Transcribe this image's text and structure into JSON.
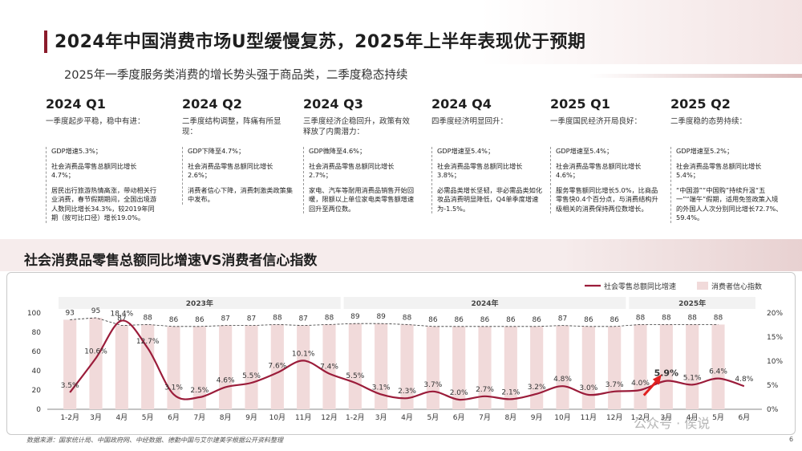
{
  "title": "2024年中国消费市场U型缓慢复苏，2025年上半年表现优于预期",
  "subtitle": "2025年一季度服务类消费的增长势头强于商品类，二季度稳态持续",
  "quarters": [
    {
      "heading": "2024 Q1",
      "summary": "一季度起步平稳，稳中有进：",
      "points": [
        "GDP增速5.3%；",
        "社会消费品零售总额同比增长4.7%；",
        "居民出行旅游热情高涨，带动相关行业消费，春节假期期间，全国出境游人数同比增长34.3%，较2019年同期（按可比口径）增长19.0%。"
      ]
    },
    {
      "heading": "2024 Q2",
      "summary": "二季度结构调整，阵痛有所显现：",
      "points": [
        "GDP下降至4.7%；",
        "社会消费品零售总额同比增长2.6%；",
        "消费者信心下降，消费刺激类政策集中发布。"
      ]
    },
    {
      "heading": "2024 Q3",
      "summary": "三季度经济企稳回升，政策有效释放了内需潜力：",
      "points": [
        "GDP微降至4.6%；",
        "社会消费品零售总额同比增长2.7%；",
        "家电、汽车等耐用消费品销售开始回暖，限额以上单位家电类零售额增速回升至两位数。"
      ]
    },
    {
      "heading": "2024 Q4",
      "summary": "四季度经济明显回升：",
      "points": [
        "GDP增速至5.4%；",
        "社会消费品零售总额同比增长3.8%；",
        "必需品类增长坚韧，非必需品类如化妆品消费明显降低，Q4单季度增速为-1.5%。"
      ]
    },
    {
      "heading": "2025 Q1",
      "summary": "一季度国民经济开局良好：",
      "points": [
        "GDP增速至5.4%；",
        "社会消费品零售总额同比增长4.6%；",
        "服务零售额同比增长5.0%，比商品零售快0.4个百分点，与消费结构升级相关的消费保持两位数增长。"
      ]
    },
    {
      "heading": "2025 Q2",
      "summary": "二季度稳的态势持续：",
      "points": [
        "GDP增速至5.2%；",
        "社会消费品零售总额同比增长5.4%；",
        "“中国游”“中国购”持续升温“五一”“端午”假期，适用免签政策入境的外国人人次分别同比增长72.7%、59.4%。"
      ]
    }
  ],
  "chart_title": "社会消费品零售总额同比增速VS消费者信心指数",
  "chart_data": {
    "type": "bar+line",
    "categories": [
      "1-2月",
      "3月",
      "4月",
      "5月",
      "6月",
      "7月",
      "8月",
      "9月",
      "10月",
      "11月",
      "12月",
      "1-2月",
      "3月",
      "4月",
      "5月",
      "6月",
      "7月",
      "8月",
      "9月",
      "10月",
      "11月",
      "12月",
      "1-2月",
      "3月",
      "4月",
      "5月",
      "6月"
    ],
    "year_labels": [
      "2023年",
      "2024年",
      "2025年"
    ],
    "series": [
      {
        "name": "社会零售总额同比增速",
        "axis": "right",
        "type": "line",
        "color": "#9b1c3a",
        "values": [
          3.5,
          10.6,
          18.4,
          12.7,
          3.1,
          2.5,
          4.6,
          5.5,
          7.6,
          10.1,
          7.4,
          5.5,
          3.1,
          2.3,
          3.7,
          2.0,
          2.7,
          2.1,
          3.2,
          4.8,
          3.0,
          3.7,
          4.0,
          5.9,
          5.1,
          6.4,
          4.8
        ]
      },
      {
        "name": "消费者信心指数",
        "axis": "left",
        "type": "bar",
        "color": "#f1dada",
        "values": [
          93,
          95,
          87,
          88,
          86,
          86,
          87,
          87,
          88,
          87,
          88,
          89,
          89,
          88,
          86,
          86,
          86,
          86,
          86,
          87,
          86,
          86,
          88,
          88,
          88,
          88,
          null
        ]
      }
    ],
    "left_axis": {
      "ylim": [
        0,
        100
      ],
      "ticks": [
        "0",
        "20",
        "40",
        "60",
        "80",
        "100"
      ]
    },
    "right_axis": {
      "ylim": [
        0,
        20
      ],
      "ticks": [
        "0%",
        "5%",
        "10%",
        "15%",
        "20%"
      ]
    },
    "legend": "top-right",
    "highlight_label": "5.9%"
  },
  "footer": "数据来源：国家统计局、中国政府网、中经数据、德勤中国与艾尔建美学根据公开资料整理",
  "page_number": "6",
  "watermark": "公众号 · 侯说"
}
